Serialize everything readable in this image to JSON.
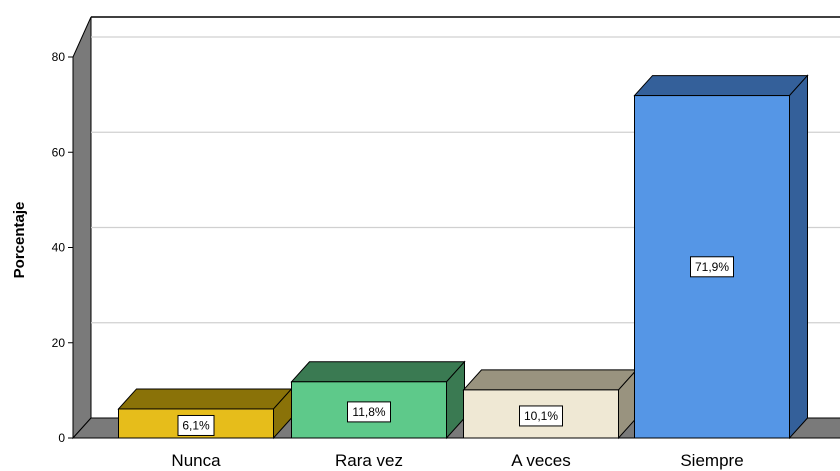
{
  "chart_data": {
    "type": "bar",
    "style": "3d",
    "categories": [
      "Nunca",
      "Rara vez",
      "A veces",
      "Siempre"
    ],
    "values": [
      6.1,
      11.8,
      10.1,
      71.9
    ],
    "data_labels": [
      "6,1%",
      "11,8%",
      "10,1%",
      "71,9%"
    ],
    "colors": [
      "#e6bd1b",
      "#5ec98a",
      "#efe8d4",
      "#5596e6"
    ],
    "side_colors": [
      "#8a7208",
      "#3a7a52",
      "#99937f",
      "#34609a"
    ],
    "ylabel": "Porcentaje",
    "yticks": [
      0,
      20,
      40,
      60,
      80
    ],
    "ylim": [
      0,
      80
    ],
    "grid": true
  }
}
